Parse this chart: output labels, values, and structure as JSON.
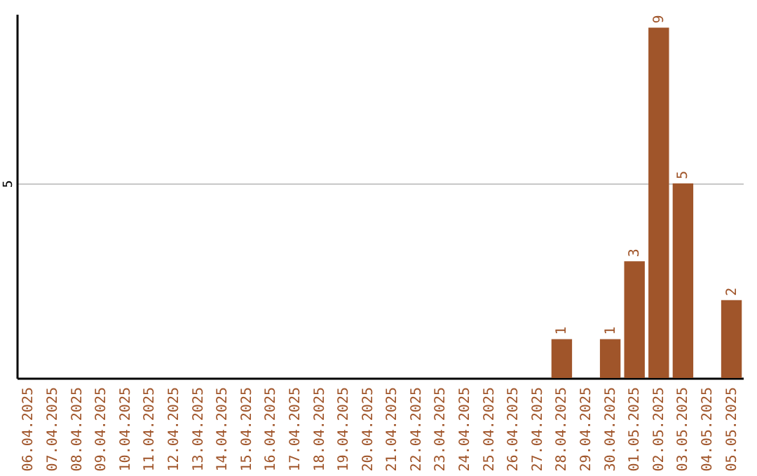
{
  "chart_data": {
    "type": "bar",
    "categories": [
      "06.04.2025",
      "07.04.2025",
      "08.04.2025",
      "09.04.2025",
      "10.04.2025",
      "11.04.2025",
      "12.04.2025",
      "13.04.2025",
      "14.04.2025",
      "15.04.2025",
      "16.04.2025",
      "17.04.2025",
      "18.04.2025",
      "19.04.2025",
      "20.04.2025",
      "21.04.2025",
      "22.04.2025",
      "23.04.2025",
      "24.04.2025",
      "25.04.2025",
      "26.04.2025",
      "27.04.2025",
      "28.04.2025",
      "29.04.2025",
      "30.04.2025",
      "01.05.2025",
      "02.05.2025",
      "03.05.2025",
      "04.05.2025",
      "05.05.2025"
    ],
    "values": [
      null,
      null,
      null,
      null,
      null,
      null,
      null,
      null,
      null,
      null,
      null,
      null,
      null,
      null,
      null,
      null,
      null,
      null,
      null,
      null,
      null,
      null,
      1,
      null,
      1,
      3,
      9,
      5,
      null,
      2
    ],
    "value_labels": [
      null,
      null,
      null,
      null,
      null,
      null,
      null,
      null,
      null,
      null,
      null,
      null,
      null,
      null,
      null,
      null,
      null,
      null,
      null,
      null,
      null,
      null,
      "1",
      null,
      "1",
      "3",
      "9",
      "5",
      null,
      "2"
    ],
    "color": "#a0552a",
    "ylim": [
      0,
      9.35
    ],
    "yticks": [
      5
    ],
    "grid": "y"
  }
}
